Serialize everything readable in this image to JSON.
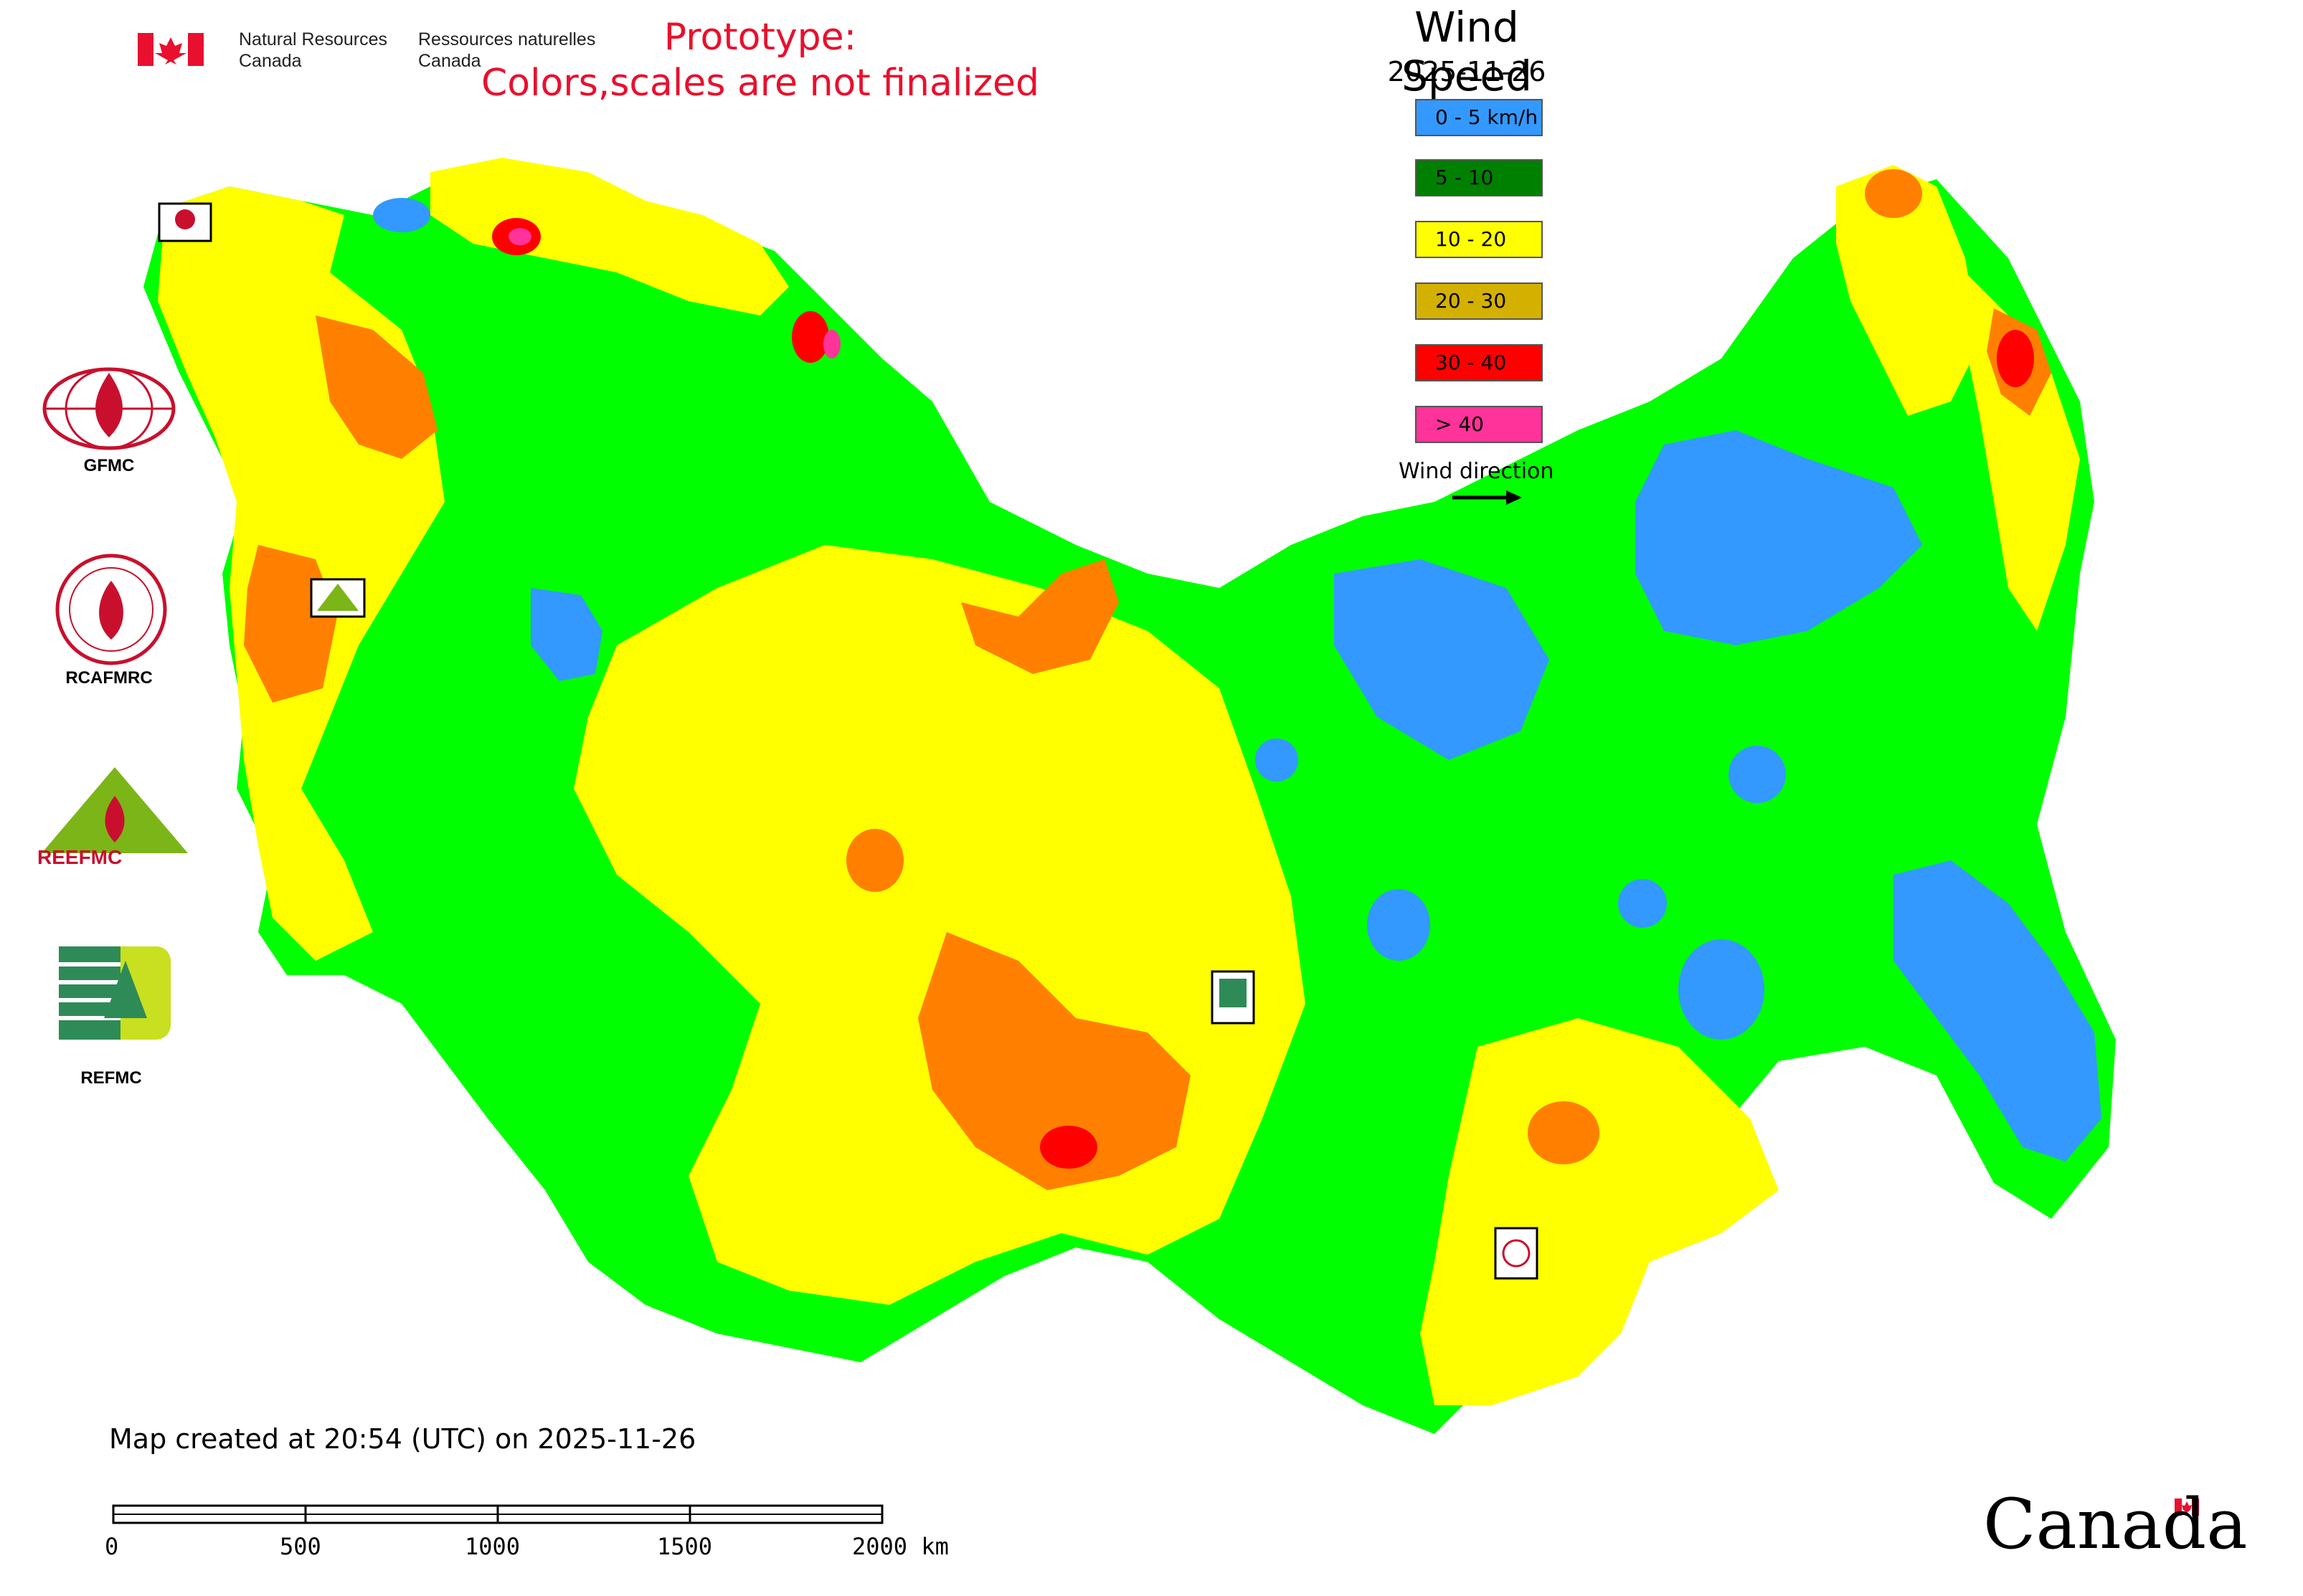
{
  "header": {
    "nrcan_en_line1": "Natural Resources",
    "nrcan_en_line2": "Canada",
    "nrcan_fr_line1": "Ressources naturelles",
    "nrcan_fr_line2": "Canada",
    "prototype_line1": "Prototype:",
    "prototype_line2": "Colors,scales are not finalized"
  },
  "legend": {
    "title": "Wind Speed",
    "date": "2025-11-26",
    "items": [
      {
        "label": "0 - 5 km/h",
        "color": "#3399ff"
      },
      {
        "label": "5 - 10",
        "color": "#008000"
      },
      {
        "label": "10 - 20",
        "color": "#ffff00"
      },
      {
        "label": "20 - 30",
        "color": "#d4b000"
      },
      {
        "label": "30 - 40",
        "color": "#ff0000"
      },
      {
        "label": "> 40",
        "color": "#ff3399"
      }
    ],
    "wind_direction_label": "Wind direction"
  },
  "map_colors": {
    "calm": "#3399ff",
    "light": "#00ff00",
    "moderate": "#ffff00",
    "fresh": "#ff8000",
    "strong": "#ff0000",
    "gale": "#ff3399"
  },
  "logos": [
    {
      "label": "GFMC",
      "icon": "gfmc-logo-icon"
    },
    {
      "label": "RCAFMRC",
      "icon": "rcafmrc-logo-icon"
    },
    {
      "label": "REFMC",
      "icon": "refmc-logo-icon"
    }
  ],
  "logo_reecfmc_text": "REEFMC",
  "footer": {
    "map_created": "Map created at 20:54 (UTC) on 2025-11-26",
    "scale_ticks": [
      "0",
      "500",
      "1000",
      "1500",
      "2000 km"
    ],
    "wordmark": "Canada"
  }
}
